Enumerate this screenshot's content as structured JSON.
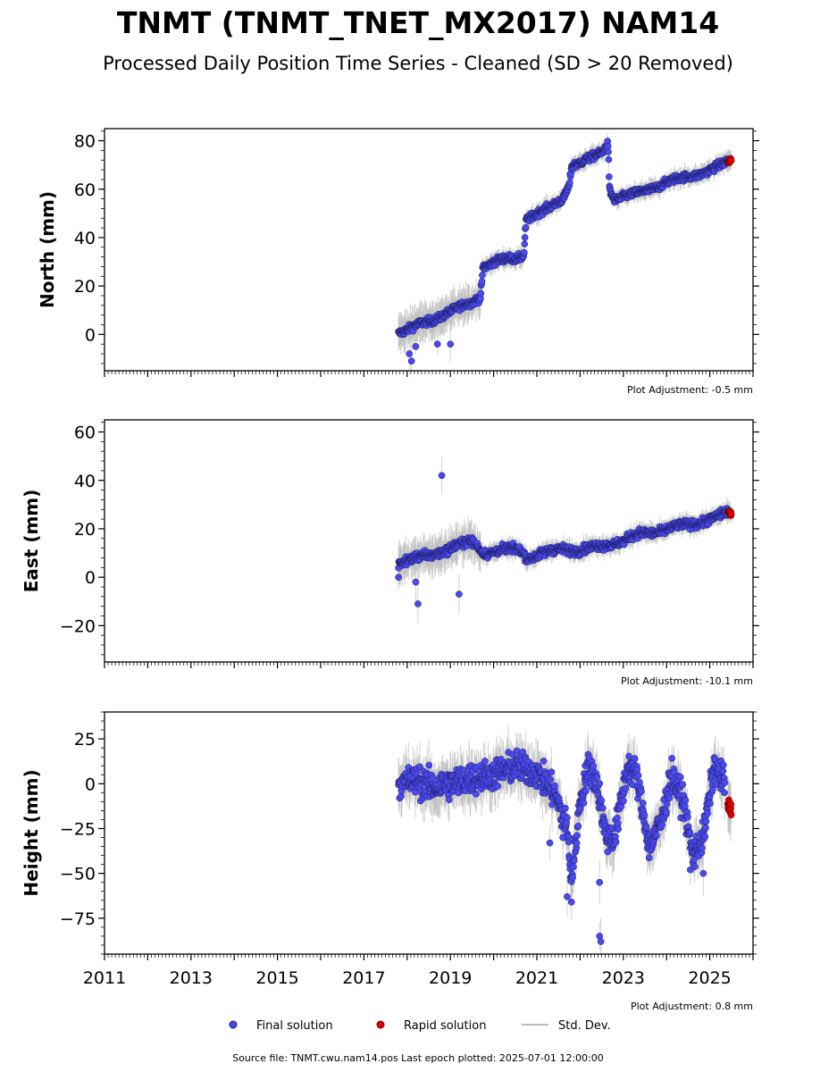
{
  "title": "TNMT (TNMT_TNET_MX2017) NAM14",
  "subtitle": "Processed Daily Position Time Series - Cleaned (SD > 20 Removed)",
  "legend": {
    "final": "Final solution",
    "rapid": "Rapid solution",
    "std": "Std. Dev."
  },
  "colors": {
    "final": "#4a4af0",
    "rapid": "#e00000",
    "std": "#bdbdbd"
  },
  "source_line": "Source file: TNMT.cwu.nam14.pos  Last epoch plotted: 2025-07-01 12:00:00",
  "chart_data": [
    {
      "type": "scatter",
      "panel": "north",
      "ylabel": "North (mm)",
      "adjustment": "Plot Adjustment: -0.5 mm",
      "xlim": [
        2011,
        2026
      ],
      "ylim": [
        -15,
        85
      ],
      "yticks": [
        0,
        20,
        40,
        60,
        80
      ],
      "yticklabels": [
        "0",
        "20",
        "40",
        "60",
        "80"
      ],
      "trend_final": [
        [
          2017.8,
          1
        ],
        [
          2018.0,
          2
        ],
        [
          2018.3,
          4
        ],
        [
          2018.6,
          6
        ],
        [
          2018.9,
          9
        ],
        [
          2019.2,
          11
        ],
        [
          2019.5,
          13
        ],
        [
          2019.7,
          16
        ],
        [
          2019.75,
          28
        ],
        [
          2020.0,
          30
        ],
        [
          2020.3,
          31
        ],
        [
          2020.5,
          31
        ],
        [
          2020.7,
          33
        ],
        [
          2020.75,
          48
        ],
        [
          2021.0,
          50
        ],
        [
          2021.3,
          52
        ],
        [
          2021.6,
          56
        ],
        [
          2021.75,
          62
        ],
        [
          2021.8,
          70
        ],
        [
          2022.0,
          71
        ],
        [
          2022.3,
          73
        ],
        [
          2022.5,
          75
        ],
        [
          2022.65,
          79
        ],
        [
          2022.68,
          60
        ],
        [
          2022.8,
          56
        ],
        [
          2023.0,
          57
        ],
        [
          2023.3,
          58
        ],
        [
          2023.6,
          60
        ],
        [
          2024.0,
          63
        ],
        [
          2024.5,
          65
        ],
        [
          2025.0,
          68
        ],
        [
          2025.3,
          70
        ],
        [
          2025.45,
          72
        ]
      ],
      "trend_rapid": [
        [
          2025.42,
          71
        ],
        [
          2025.5,
          72
        ]
      ],
      "outliers": [
        [
          2018.05,
          -8
        ],
        [
          2018.1,
          -11
        ],
        [
          2018.2,
          -5
        ],
        [
          2018.7,
          -4
        ],
        [
          2019.0,
          -4
        ]
      ]
    },
    {
      "type": "scatter",
      "panel": "east",
      "ylabel": "East (mm)",
      "adjustment": "Plot Adjustment: -10.1 mm",
      "xlim": [
        2011,
        2026
      ],
      "ylim": [
        -35,
        65
      ],
      "yticks": [
        -20,
        0,
        20,
        40,
        60
      ],
      "yticklabels": [
        "−20",
        "0",
        "20",
        "40",
        "60"
      ],
      "trend_final": [
        [
          2017.8,
          6
        ],
        [
          2018.0,
          7
        ],
        [
          2018.5,
          9
        ],
        [
          2019.0,
          12
        ],
        [
          2019.5,
          15
        ],
        [
          2019.8,
          10
        ],
        [
          2020.2,
          11
        ],
        [
          2020.6,
          12
        ],
        [
          2020.8,
          8
        ],
        [
          2021.2,
          10
        ],
        [
          2021.6,
          12
        ],
        [
          2022.0,
          11
        ],
        [
          2022.5,
          13
        ],
        [
          2023.0,
          15
        ],
        [
          2023.4,
          18
        ],
        [
          2023.8,
          19
        ],
        [
          2024.3,
          21
        ],
        [
          2024.8,
          23
        ],
        [
          2025.2,
          25
        ],
        [
          2025.45,
          27
        ]
      ],
      "trend_rapid": [
        [
          2025.42,
          27
        ],
        [
          2025.5,
          26
        ]
      ],
      "outliers": [
        [
          2018.2,
          -2
        ],
        [
          2018.25,
          -11
        ],
        [
          2018.8,
          42
        ],
        [
          2019.2,
          -7
        ],
        [
          2017.8,
          0
        ]
      ]
    },
    {
      "type": "scatter",
      "panel": "height",
      "ylabel": "Height (mm)",
      "adjustment": "Plot Adjustment: 0.8 mm",
      "xlim": [
        2011,
        2026
      ],
      "ylim": [
        -95,
        40
      ],
      "yticks": [
        -75,
        -50,
        -25,
        0,
        25
      ],
      "yticklabels": [
        "−75",
        "−50",
        "−25",
        "0",
        "25"
      ],
      "xticks": [
        2011,
        2013,
        2015,
        2017,
        2019,
        2021,
        2023,
        2025
      ],
      "xticklabels": [
        "2011",
        "2013",
        "2015",
        "2017",
        "2019",
        "2021",
        "2023",
        "2025"
      ],
      "trend_final": [
        [
          2017.8,
          0
        ],
        [
          2018.2,
          2
        ],
        [
          2018.6,
          -2
        ],
        [
          2019.0,
          0
        ],
        [
          2019.5,
          3
        ],
        [
          2020.0,
          5
        ],
        [
          2020.5,
          10
        ],
        [
          2021.0,
          6
        ],
        [
          2021.4,
          -5
        ],
        [
          2021.7,
          -25
        ],
        [
          2021.8,
          -55
        ],
        [
          2022.0,
          -10
        ],
        [
          2022.2,
          10
        ],
        [
          2022.4,
          0
        ],
        [
          2022.6,
          -30
        ],
        [
          2022.8,
          -30
        ],
        [
          2023.1,
          10
        ],
        [
          2023.3,
          5
        ],
        [
          2023.6,
          -35
        ],
        [
          2023.9,
          -20
        ],
        [
          2024.1,
          5
        ],
        [
          2024.4,
          -10
        ],
        [
          2024.6,
          -40
        ],
        [
          2024.85,
          -30
        ],
        [
          2025.1,
          10
        ],
        [
          2025.35,
          0
        ]
      ],
      "trend_rapid": [
        [
          2025.42,
          -12
        ],
        [
          2025.5,
          -15
        ]
      ],
      "outliers": [
        [
          2022.45,
          -55
        ],
        [
          2022.45,
          -85
        ],
        [
          2022.48,
          -88
        ],
        [
          2021.7,
          -63
        ],
        [
          2021.8,
          -66
        ],
        [
          2021.3,
          -33
        ],
        [
          2021.6,
          -30
        ],
        [
          2024.85,
          -50
        ],
        [
          2024.55,
          -48
        ]
      ]
    }
  ]
}
